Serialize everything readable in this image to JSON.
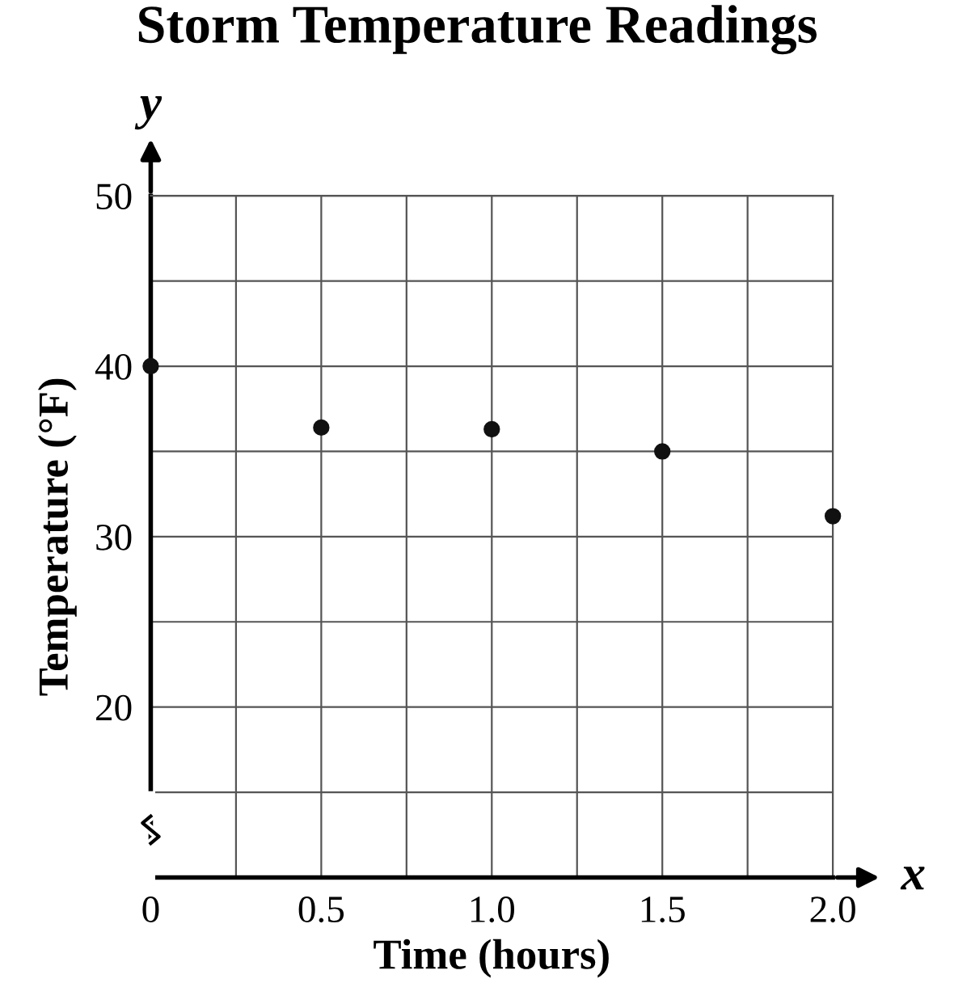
{
  "chart_data": {
    "type": "scatter",
    "title": "Storm Temperature Readings",
    "xlabel": "Time (hours)",
    "ylabel": "Temperature (°F)",
    "annotations": [
      "x",
      "y"
    ],
    "x": [
      0,
      0.5,
      1.0,
      1.5,
      2.0
    ],
    "series": [
      {
        "color": "#111111",
        "values": [
          40,
          36.4,
          36.3,
          35.0,
          31.2
        ]
      }
    ],
    "xlim": [
      0,
      2.0
    ],
    "ylim": [
      10,
      50
    ],
    "xticks": [
      0,
      {
        "value": 0.25,
        "label": null
      },
      0.5,
      {
        "value": 0.75,
        "label": null
      },
      {
        "value": 1.0,
        "label": "1.0"
      },
      {
        "value": 1.25,
        "label": null
      },
      1.5,
      {
        "value": 1.75,
        "label": null
      },
      {
        "value": 2.0,
        "label": "2.0"
      }
    ],
    "yticks": [
      {
        "value": 15,
        "label": null
      },
      20,
      {
        "value": 25,
        "label": null
      },
      30,
      {
        "value": 35,
        "label": null
      },
      40,
      {
        "value": 45,
        "label": null
      },
      50
    ],
    "grid": true,
    "marker": "circle"
  }
}
